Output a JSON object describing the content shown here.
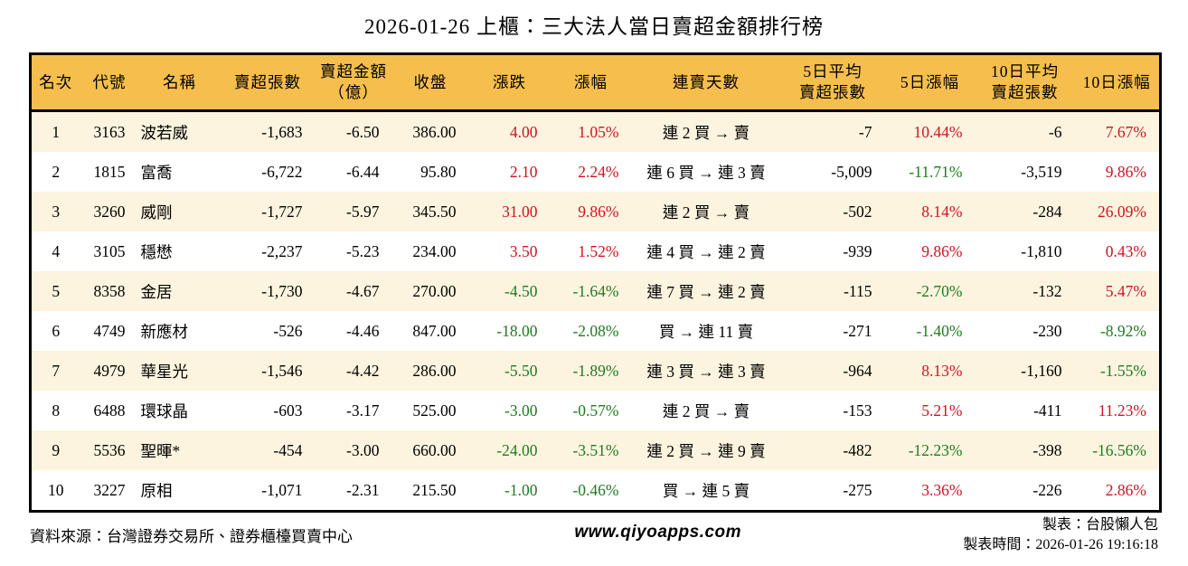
{
  "title": "2026-01-26 上櫃：三大法人當日賣超金額排行榜",
  "colors": {
    "header_bg": "#F6BE4C",
    "row_alt": "#FCF4DF",
    "up_red": "#CF1322",
    "down_green": "#1F7A1F",
    "border": "#000000"
  },
  "table": {
    "headers": [
      "名次",
      "代號",
      "名稱",
      "賣超張數",
      "賣超金額\n（億）",
      "收盤",
      "漲跌",
      "漲幅",
      "連賣天數",
      "5日平均\n賣超張數",
      "5日漲幅",
      "10日平均\n賣超張數",
      "10日漲幅"
    ],
    "rows": [
      {
        "rank": "1",
        "code": "3163",
        "name": "波若威",
        "sell_vol": "-1,683",
        "sell_amt": "-6.50",
        "close": "386.00",
        "chg": "4.00",
        "chg_pct": "1.05%",
        "streak": "連 2 買 → 賣",
        "avg5": "-7",
        "pct5": "10.44%",
        "avg10": "-6",
        "pct10": "7.67%"
      },
      {
        "rank": "2",
        "code": "1815",
        "name": "富喬",
        "sell_vol": "-6,722",
        "sell_amt": "-6.44",
        "close": "95.80",
        "chg": "2.10",
        "chg_pct": "2.24%",
        "streak": "連 6 買 → 連 3 賣",
        "avg5": "-5,009",
        "pct5": "-11.71%",
        "avg10": "-3,519",
        "pct10": "9.86%"
      },
      {
        "rank": "3",
        "code": "3260",
        "name": "威剛",
        "sell_vol": "-1,727",
        "sell_amt": "-5.97",
        "close": "345.50",
        "chg": "31.00",
        "chg_pct": "9.86%",
        "streak": "連 2 買 → 賣",
        "avg5": "-502",
        "pct5": "8.14%",
        "avg10": "-284",
        "pct10": "26.09%"
      },
      {
        "rank": "4",
        "code": "3105",
        "name": "穩懋",
        "sell_vol": "-2,237",
        "sell_amt": "-5.23",
        "close": "234.00",
        "chg": "3.50",
        "chg_pct": "1.52%",
        "streak": "連 4 買 → 連 2 賣",
        "avg5": "-939",
        "pct5": "9.86%",
        "avg10": "-1,810",
        "pct10": "0.43%"
      },
      {
        "rank": "5",
        "code": "8358",
        "name": "金居",
        "sell_vol": "-1,730",
        "sell_amt": "-4.67",
        "close": "270.00",
        "chg": "-4.50",
        "chg_pct": "-1.64%",
        "streak": "連 7 買 → 連 2 賣",
        "avg5": "-115",
        "pct5": "-2.70%",
        "avg10": "-132",
        "pct10": "5.47%"
      },
      {
        "rank": "6",
        "code": "4749",
        "name": "新應材",
        "sell_vol": "-526",
        "sell_amt": "-4.46",
        "close": "847.00",
        "chg": "-18.00",
        "chg_pct": "-2.08%",
        "streak": "買 → 連 11 賣",
        "avg5": "-271",
        "pct5": "-1.40%",
        "avg10": "-230",
        "pct10": "-8.92%"
      },
      {
        "rank": "7",
        "code": "4979",
        "name": "華星光",
        "sell_vol": "-1,546",
        "sell_amt": "-4.42",
        "close": "286.00",
        "chg": "-5.50",
        "chg_pct": "-1.89%",
        "streak": "連 3 買 → 連 3 賣",
        "avg5": "-964",
        "pct5": "8.13%",
        "avg10": "-1,160",
        "pct10": "-1.55%"
      },
      {
        "rank": "8",
        "code": "6488",
        "name": "環球晶",
        "sell_vol": "-603",
        "sell_amt": "-3.17",
        "close": "525.00",
        "chg": "-3.00",
        "chg_pct": "-0.57%",
        "streak": "連 2 買 → 賣",
        "avg5": "-153",
        "pct5": "5.21%",
        "avg10": "-411",
        "pct10": "11.23%"
      },
      {
        "rank": "9",
        "code": "5536",
        "name": "聖暉*",
        "sell_vol": "-454",
        "sell_amt": "-3.00",
        "close": "660.00",
        "chg": "-24.00",
        "chg_pct": "-3.51%",
        "streak": "連 2 買 → 連 9 賣",
        "avg5": "-482",
        "pct5": "-12.23%",
        "avg10": "-398",
        "pct10": "-16.56%"
      },
      {
        "rank": "10",
        "code": "3227",
        "name": "原相",
        "sell_vol": "-1,071",
        "sell_amt": "-2.31",
        "close": "215.50",
        "chg": "-1.00",
        "chg_pct": "-0.46%",
        "streak": "買 → 連 5 賣",
        "avg5": "-275",
        "pct5": "3.36%",
        "avg10": "-226",
        "pct10": "2.86%"
      }
    ]
  },
  "footer": {
    "source": "資料來源：台灣證券交易所、證券櫃檯買賣中心",
    "website": "www.qiyoapps.com",
    "author": "製表：台股懶人包",
    "generated": "製表時間：2026-01-26 19:16:18"
  }
}
